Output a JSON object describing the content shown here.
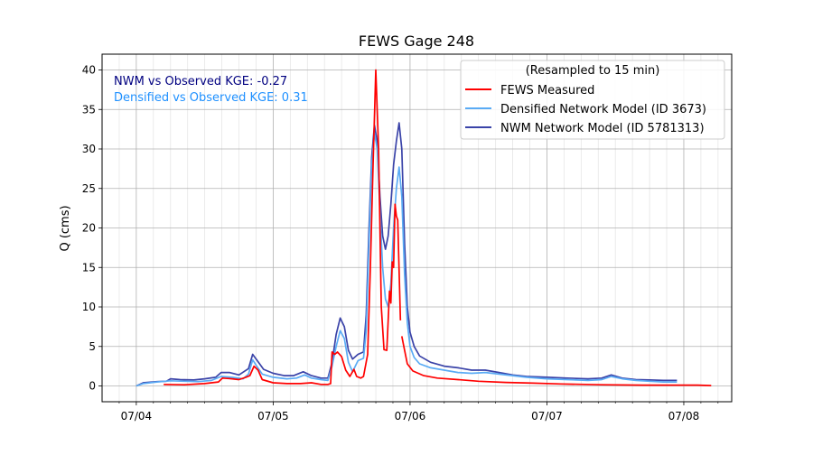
{
  "chart_data": {
    "type": "line",
    "title": "FEWS Gage 248",
    "xlabel": "",
    "ylabel": "Q (cms)",
    "xlim": [
      "07/04 -0.25d",
      "07/08 +0.35d"
    ],
    "x_tick_labels": [
      "07/04",
      "07/05",
      "07/06",
      "07/07",
      "07/08"
    ],
    "ylim": [
      -2,
      42
    ],
    "y_ticks": [
      0,
      5,
      10,
      15,
      20,
      25,
      30,
      35,
      40
    ],
    "grid": true,
    "legend": {
      "title": "(Resampled to 15 min)",
      "placement": "top-right"
    },
    "annotations": [
      {
        "text": "NWM vs Observed KGE: -0.27",
        "color": "#000080"
      },
      {
        "text": "Densified vs Observed KGE: 0.31",
        "color": "#1e90ff"
      }
    ],
    "x_unit": "days since 07/04 00:00",
    "series": [
      {
        "name": "FEWS Measured",
        "color": "#ff0000",
        "segments": [
          [
            [
              0.2,
              0.2
            ],
            [
              0.35,
              0.15
            ],
            [
              0.5,
              0.3
            ],
            [
              0.6,
              0.5
            ],
            [
              0.63,
              1.0
            ],
            [
              0.7,
              0.9
            ],
            [
              0.75,
              0.8
            ],
            [
              0.8,
              1.1
            ],
            [
              0.83,
              1.3
            ],
            [
              0.86,
              2.5
            ],
            [
              0.89,
              2.0
            ],
            [
              0.92,
              0.8
            ],
            [
              1.0,
              0.4
            ],
            [
              1.1,
              0.3
            ],
            [
              1.2,
              0.3
            ],
            [
              1.28,
              0.4
            ],
            [
              1.35,
              0.2
            ],
            [
              1.4,
              0.2
            ],
            [
              1.42,
              0.3
            ],
            [
              1.43,
              4.3
            ],
            [
              1.45,
              4.0
            ],
            [
              1.47,
              4.3
            ],
            [
              1.5,
              3.7
            ],
            [
              1.53,
              2.0
            ],
            [
              1.56,
              1.2
            ],
            [
              1.59,
              2.1
            ],
            [
              1.61,
              1.2
            ],
            [
              1.64,
              1.0
            ],
            [
              1.66,
              1.2
            ],
            [
              1.69,
              4.0
            ],
            [
              1.71,
              15.0
            ],
            [
              1.73,
              28.0
            ],
            [
              1.75,
              40.0
            ],
            [
              1.77,
              30.0
            ],
            [
              1.79,
              10.0
            ],
            [
              1.81,
              4.6
            ],
            [
              1.83,
              4.5
            ],
            [
              1.85,
              12.0
            ],
            [
              1.86,
              10.5
            ],
            [
              1.87,
              15.7
            ],
            [
              1.88,
              15.0
            ],
            [
              1.89,
              23.0
            ],
            [
              1.9,
              21.5
            ],
            [
              1.91,
              21.0
            ],
            [
              1.93,
              8.3
            ]
          ],
          [
            [
              1.94,
              6.3
            ],
            [
              1.96,
              4.5
            ],
            [
              1.98,
              2.8
            ],
            [
              2.02,
              1.9
            ],
            [
              2.1,
              1.3
            ],
            [
              2.2,
              1.0
            ],
            [
              2.35,
              0.8
            ],
            [
              2.5,
              0.6
            ],
            [
              2.7,
              0.45
            ],
            [
              2.9,
              0.35
            ],
            [
              3.1,
              0.25
            ],
            [
              3.4,
              0.15
            ],
            [
              3.7,
              0.1
            ],
            [
              3.9,
              0.1
            ],
            [
              4.1,
              0.1
            ],
            [
              4.2,
              0.05
            ]
          ]
        ]
      },
      {
        "name": "Densified Network Model (ID 3673)",
        "color": "#5aabf5",
        "segments": [
          [
            [
              0,
              0
            ],
            [
              0.05,
              0.3
            ],
            [
              0.15,
              0.5
            ],
            [
              0.25,
              0.65
            ],
            [
              0.35,
              0.6
            ],
            [
              0.45,
              0.55
            ],
            [
              0.55,
              0.7
            ],
            [
              0.62,
              1.2
            ],
            [
              0.7,
              1.1
            ],
            [
              0.78,
              0.9
            ],
            [
              0.82,
              1.5
            ],
            [
              0.85,
              3.3
            ],
            [
              0.88,
              2.5
            ],
            [
              0.92,
              1.5
            ],
            [
              1.0,
              1.1
            ],
            [
              1.1,
              0.9
            ],
            [
              1.17,
              1.0
            ],
            [
              1.23,
              1.4
            ],
            [
              1.28,
              1.0
            ],
            [
              1.35,
              0.8
            ],
            [
              1.4,
              0.7
            ],
            [
              1.43,
              2.5
            ],
            [
              1.46,
              5.0
            ],
            [
              1.49,
              7.0
            ],
            [
              1.52,
              6.0
            ],
            [
              1.55,
              3.0
            ],
            [
              1.58,
              1.8
            ],
            [
              1.62,
              3.2
            ],
            [
              1.66,
              3.5
            ],
            [
              1.68,
              7.0
            ],
            [
              1.7,
              18.0
            ],
            [
              1.72,
              28.0
            ],
            [
              1.74,
              32.0
            ],
            [
              1.76,
              30.0
            ],
            [
              1.78,
              22.0
            ],
            [
              1.8,
              15.0
            ],
            [
              1.82,
              11.0
            ],
            [
              1.84,
              10.0
            ],
            [
              1.86,
              13.0
            ],
            [
              1.88,
              20.0
            ],
            [
              1.9,
              25.0
            ],
            [
              1.92,
              27.7
            ],
            [
              1.94,
              24.0
            ],
            [
              1.96,
              14.0
            ],
            [
              1.98,
              8.0
            ],
            [
              2.0,
              5.0
            ],
            [
              2.03,
              3.6
            ],
            [
              2.07,
              2.8
            ],
            [
              2.15,
              2.3
            ],
            [
              2.25,
              2.0
            ],
            [
              2.35,
              1.7
            ],
            [
              2.45,
              1.6
            ],
            [
              2.55,
              1.7
            ],
            [
              2.65,
              1.5
            ],
            [
              2.75,
              1.3
            ],
            [
              2.85,
              1.1
            ],
            [
              3.0,
              0.9
            ],
            [
              3.15,
              0.8
            ],
            [
              3.3,
              0.7
            ],
            [
              3.4,
              0.8
            ],
            [
              3.47,
              1.2
            ],
            [
              3.55,
              0.9
            ],
            [
              3.65,
              0.7
            ],
            [
              3.75,
              0.6
            ],
            [
              3.85,
              0.5
            ],
            [
              3.95,
              0.5
            ]
          ]
        ]
      },
      {
        "name": "NWM Network Model (ID 5781313)",
        "color": "#3a43a8",
        "segments": [
          [
            [
              0,
              0
            ],
            [
              0.05,
              0.4
            ],
            [
              0.15,
              0.55
            ],
            [
              0.22,
              0.6
            ],
            [
              0.25,
              0.9
            ],
            [
              0.32,
              0.8
            ],
            [
              0.42,
              0.75
            ],
            [
              0.5,
              0.9
            ],
            [
              0.58,
              1.1
            ],
            [
              0.62,
              1.7
            ],
            [
              0.68,
              1.7
            ],
            [
              0.75,
              1.4
            ],
            [
              0.82,
              2.2
            ],
            [
              0.85,
              4.0
            ],
            [
              0.88,
              3.3
            ],
            [
              0.93,
              2.1
            ],
            [
              1.0,
              1.6
            ],
            [
              1.08,
              1.3
            ],
            [
              1.15,
              1.3
            ],
            [
              1.22,
              1.8
            ],
            [
              1.28,
              1.3
            ],
            [
              1.35,
              1.0
            ],
            [
              1.4,
              1.0
            ],
            [
              1.43,
              3.0
            ],
            [
              1.46,
              6.5
            ],
            [
              1.49,
              8.6
            ],
            [
              1.52,
              7.5
            ],
            [
              1.55,
              4.5
            ],
            [
              1.58,
              3.4
            ],
            [
              1.62,
              4.0
            ],
            [
              1.66,
              4.3
            ],
            [
              1.68,
              9.0
            ],
            [
              1.7,
              20.0
            ],
            [
              1.72,
              29.0
            ],
            [
              1.74,
              33.0
            ],
            [
              1.76,
              31.0
            ],
            [
              1.78,
              24.0
            ],
            [
              1.8,
              19.0
            ],
            [
              1.82,
              17.3
            ],
            [
              1.84,
              19.0
            ],
            [
              1.86,
              23.0
            ],
            [
              1.88,
              28.0
            ],
            [
              1.9,
              31.0
            ],
            [
              1.92,
              33.3
            ],
            [
              1.94,
              30.0
            ],
            [
              1.96,
              18.0
            ],
            [
              1.98,
              10.0
            ],
            [
              2.0,
              6.8
            ],
            [
              2.03,
              5.0
            ],
            [
              2.07,
              3.8
            ],
            [
              2.15,
              3.0
            ],
            [
              2.25,
              2.5
            ],
            [
              2.35,
              2.3
            ],
            [
              2.45,
              2.0
            ],
            [
              2.55,
              2.0
            ],
            [
              2.65,
              1.7
            ],
            [
              2.75,
              1.4
            ],
            [
              2.85,
              1.2
            ],
            [
              3.0,
              1.1
            ],
            [
              3.15,
              1.0
            ],
            [
              3.3,
              0.9
            ],
            [
              3.4,
              1.0
            ],
            [
              3.47,
              1.4
            ],
            [
              3.55,
              1.0
            ],
            [
              3.65,
              0.8
            ],
            [
              3.75,
              0.75
            ],
            [
              3.85,
              0.7
            ],
            [
              3.95,
              0.7
            ]
          ]
        ]
      }
    ]
  }
}
